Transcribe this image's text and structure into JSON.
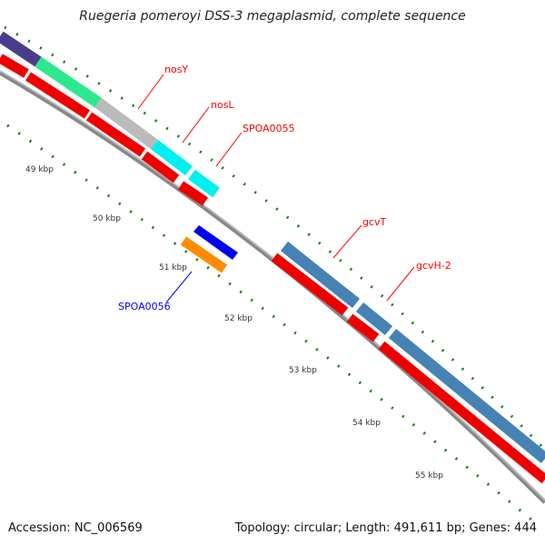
{
  "title": "Ruegeria pomeroyi DSS-3 megaplasmid, complete sequence",
  "accession": "Accession: NC_006569",
  "summary": "Topology: circular; Length: 491,611 bp; Genes: 444",
  "ticks": [
    "49 kbp",
    "50 kbp",
    "51 kbp",
    "52 kbp",
    "53 kbp",
    "54 kbp",
    "55 kbp"
  ],
  "labels": {
    "nosY": "nosY",
    "nosL": "nosL",
    "spoa0055": "SPOA0055",
    "spoa0056": "SPOA0056",
    "gcvT": "gcvT",
    "gcvH2": "gcvH-2"
  },
  "colors": {
    "backbone": "#888888",
    "cds_forward": "#ff0000",
    "purple": "#483d8b",
    "green": "#2ee88e",
    "gray": "#bbbbbb",
    "cyan": "#00f0f0",
    "steelblue": "#4682b4",
    "blue": "#0000ee",
    "orange": "#ff8c00",
    "tick": "#1a7a1a",
    "label_red": "#ff0000",
    "label_blue": "#0000ff"
  }
}
